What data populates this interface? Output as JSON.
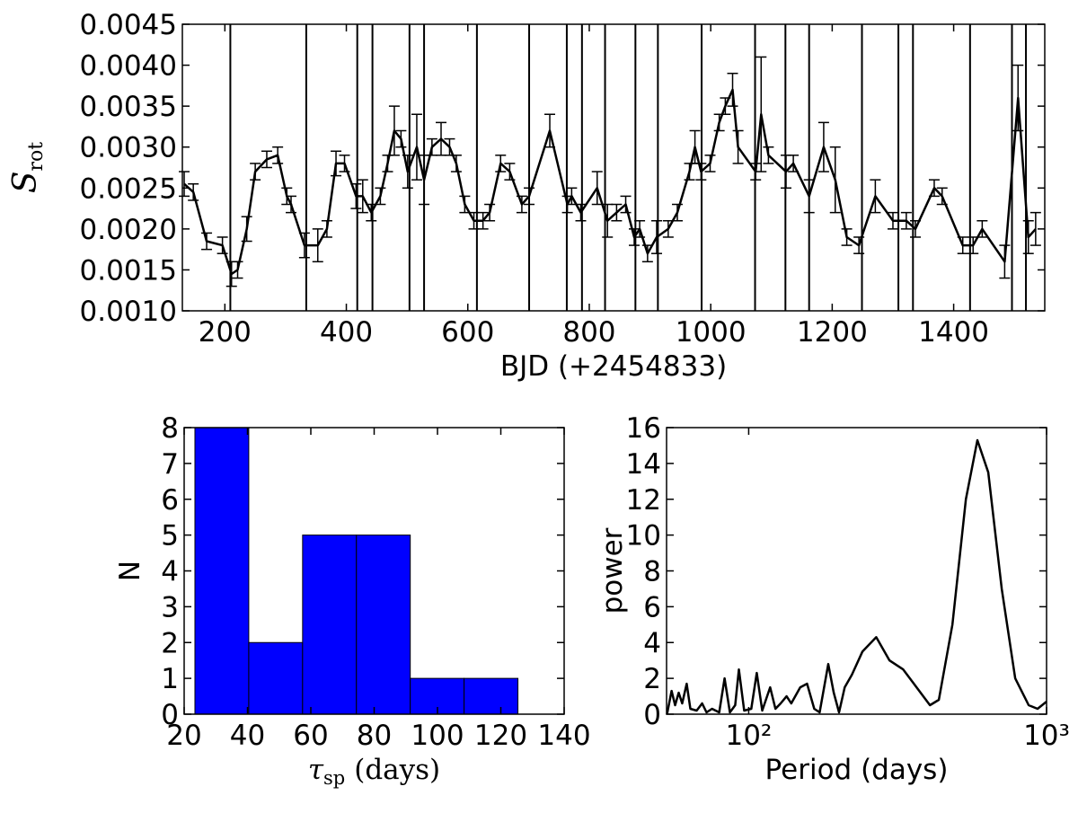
{
  "chart_data": [
    {
      "type": "line",
      "xlabel": "BJD (+2454833)",
      "ylabel": "S",
      "ylabel_sub": "rot",
      "xlim": [
        130,
        1550
      ],
      "xticks": [
        200,
        400,
        600,
        800,
        1000,
        1200,
        1400
      ],
      "ylim": [
        0.001,
        0.0045
      ],
      "yticks": [
        {
          "value": 0.001,
          "label": "0.0010"
        },
        0.0015,
        {
          "value": 0.002,
          "label": "0.0020"
        },
        0.0025,
        {
          "value": 0.003,
          "label": "0.0030"
        },
        0.0035,
        {
          "value": 0.004,
          "label": "0.0040"
        },
        0.0045
      ],
      "vlines": [
        209,
        334,
        418,
        443,
        504,
        528,
        615,
        701,
        763,
        788,
        826,
        876,
        913,
        985,
        1073,
        1123,
        1162,
        1249,
        1309,
        1333,
        1427,
        1496,
        1519
      ],
      "series": [
        {
          "color": "#000000",
          "x": [
            133,
            148,
            170,
            196,
            211,
            221,
            236,
            250,
            269,
            287,
            302,
            309,
            331,
            353,
            368,
            383,
            397,
            416,
            427,
            441,
            456,
            468,
            479,
            490,
            501,
            516,
            528,
            541,
            556,
            570,
            581,
            595,
            610,
            625,
            636,
            654,
            669,
            689,
            701,
            735,
            764,
            771,
            786,
            813,
            830,
            845,
            860,
            874,
            883,
            896,
            911,
            930,
            945,
            965,
            974,
            984,
            999,
            1014,
            1024,
            1036,
            1045,
            1074,
            1083,
            1095,
            1124,
            1136,
            1162,
            1186,
            1205,
            1224,
            1244,
            1271,
            1300,
            1322,
            1337,
            1368,
            1381,
            1415,
            1432,
            1447,
            1484,
            1506,
            1523,
            1535
          ],
          "values": [
            0.00255,
            0.00245,
            0.00185,
            0.0018,
            0.00145,
            0.0015,
            0.002,
            0.0027,
            0.00285,
            0.0029,
            0.0024,
            0.0023,
            0.0018,
            0.0018,
            0.002,
            0.0028,
            0.0028,
            0.0024,
            0.0024,
            0.0022,
            0.0024,
            0.0028,
            0.0032,
            0.0031,
            0.0027,
            0.003,
            0.0026,
            0.003,
            0.0031,
            0.003,
            0.0028,
            0.0023,
            0.0021,
            0.0021,
            0.0022,
            0.0028,
            0.0027,
            0.0023,
            0.0024,
            0.0032,
            0.0023,
            0.0024,
            0.0022,
            0.0025,
            0.0021,
            0.0022,
            0.0023,
            0.0019,
            0.002,
            0.0017,
            0.0019,
            0.002,
            0.0022,
            0.0027,
            0.003,
            0.0027,
            0.0028,
            0.0033,
            0.0035,
            0.0037,
            0.003,
            0.0027,
            0.0034,
            0.0029,
            0.0027,
            0.0028,
            0.0024,
            0.003,
            0.0026,
            0.0019,
            0.0018,
            0.0024,
            0.0021,
            0.0021,
            0.002,
            0.0025,
            0.0024,
            0.0018,
            0.0018,
            0.002,
            0.0016,
            0.0036,
            0.0019,
            0.002
          ],
          "errors": [
            0.00015,
            0.0001,
            0.0001,
            0.0001,
            0.00015,
            0.0001,
            0.00015,
            0.0001,
            0.0001,
            0.0001,
            0.0001,
            0.0001,
            0.00015,
            0.0002,
            0.0001,
            0.00015,
            0.0001,
            0.00015,
            0.0002,
            0.0001,
            0.0001,
            0.0001,
            0.0003,
            0.0001,
            0.0002,
            0.0004,
            0.0003,
            0.0001,
            0.0002,
            0.0001,
            0.0001,
            0.0001,
            0.0001,
            0.0001,
            0.0001,
            0.0001,
            0.0001,
            0.0001,
            0.0001,
            0.0002,
            0.0001,
            0.0001,
            0.0001,
            0.0002,
            0.0002,
            0.0001,
            0.0001,
            0.0001,
            0.0001,
            0.0001,
            0.0002,
            0.0001,
            0.0001,
            0.0001,
            0.0002,
            0.0001,
            0.0001,
            0.0001,
            0.0001,
            0.0002,
            0.0002,
            0.0001,
            0.0007,
            0.0001,
            0.0002,
            0.0001,
            0.0002,
            0.0003,
            0.0004,
            0.0001,
            0.0001,
            0.0002,
            0.0001,
            0.0001,
            0.0001,
            0.0001,
            0.0001,
            0.0001,
            0.0001,
            0.0001,
            0.0002,
            0.0004,
            0.0002,
            0.0002
          ]
        }
      ]
    },
    {
      "type": "histogram",
      "xlabel": "τ",
      "xlabel_sub": "sp",
      "xlabel_unit": "(days)",
      "ylabel": "N",
      "bins": [
        23.4,
        40.4,
        57.4,
        74.4,
        91.4,
        108.4,
        125.4
      ],
      "counts": [
        8,
        2,
        5,
        5,
        1,
        1
      ],
      "color": "#0000ff",
      "xlim": [
        20,
        140
      ],
      "xticks": [
        20,
        40,
        60,
        80,
        100,
        120,
        140
      ],
      "ylim": [
        0,
        8
      ],
      "yticks": [
        0,
        1,
        2,
        3,
        4,
        5,
        6,
        7,
        8
      ]
    },
    {
      "type": "line",
      "xlabel": "Period (days)",
      "ylabel": "power",
      "xlog": true,
      "xlim": [
        53,
        1000
      ],
      "xticks": [
        {
          "value": 100,
          "label": "10²"
        },
        {
          "value": 1000,
          "label": "10³"
        }
      ],
      "ylim": [
        0,
        16
      ],
      "yticks": [
        0,
        2,
        4,
        6,
        8,
        10,
        12,
        14,
        16
      ],
      "series": [
        {
          "color": "#000000",
          "x": [
            53.2,
            55.1,
            56.6,
            58.2,
            59.8,
            61.9,
            63.7,
            66.9,
            69.8,
            72.2,
            75.3,
            79.6,
            83,
            86.5,
            90.1,
            92.7,
            96.6,
            102,
            106.4,
            111,
            118,
            123,
            128,
            134,
            139,
            149,
            157,
            166,
            173,
            185,
            193,
            201,
            210,
            222,
            241,
            268,
            297,
            330,
            366,
            406,
            435,
            483,
            536,
            586,
            637,
            707,
            785,
            871,
            933,
            1000
          ],
          "values": [
            0,
            1.3,
            0.5,
            1.2,
            0.6,
            1.7,
            0.3,
            0.2,
            0.6,
            0.1,
            0.3,
            0.1,
            2.0,
            0.1,
            0.5,
            2.5,
            0.2,
            0.3,
            2.3,
            0.2,
            1.5,
            0.3,
            0.6,
            1.0,
            0.6,
            1.5,
            1.7,
            0.3,
            0.1,
            2.8,
            1.2,
            0.1,
            1.5,
            2.2,
            3.5,
            4.3,
            3.0,
            2.5,
            1.5,
            0.5,
            0.8,
            5.0,
            12.0,
            15.3,
            13.5,
            7.0,
            2.0,
            0.5,
            0.3,
            0.7
          ]
        }
      ]
    }
  ]
}
